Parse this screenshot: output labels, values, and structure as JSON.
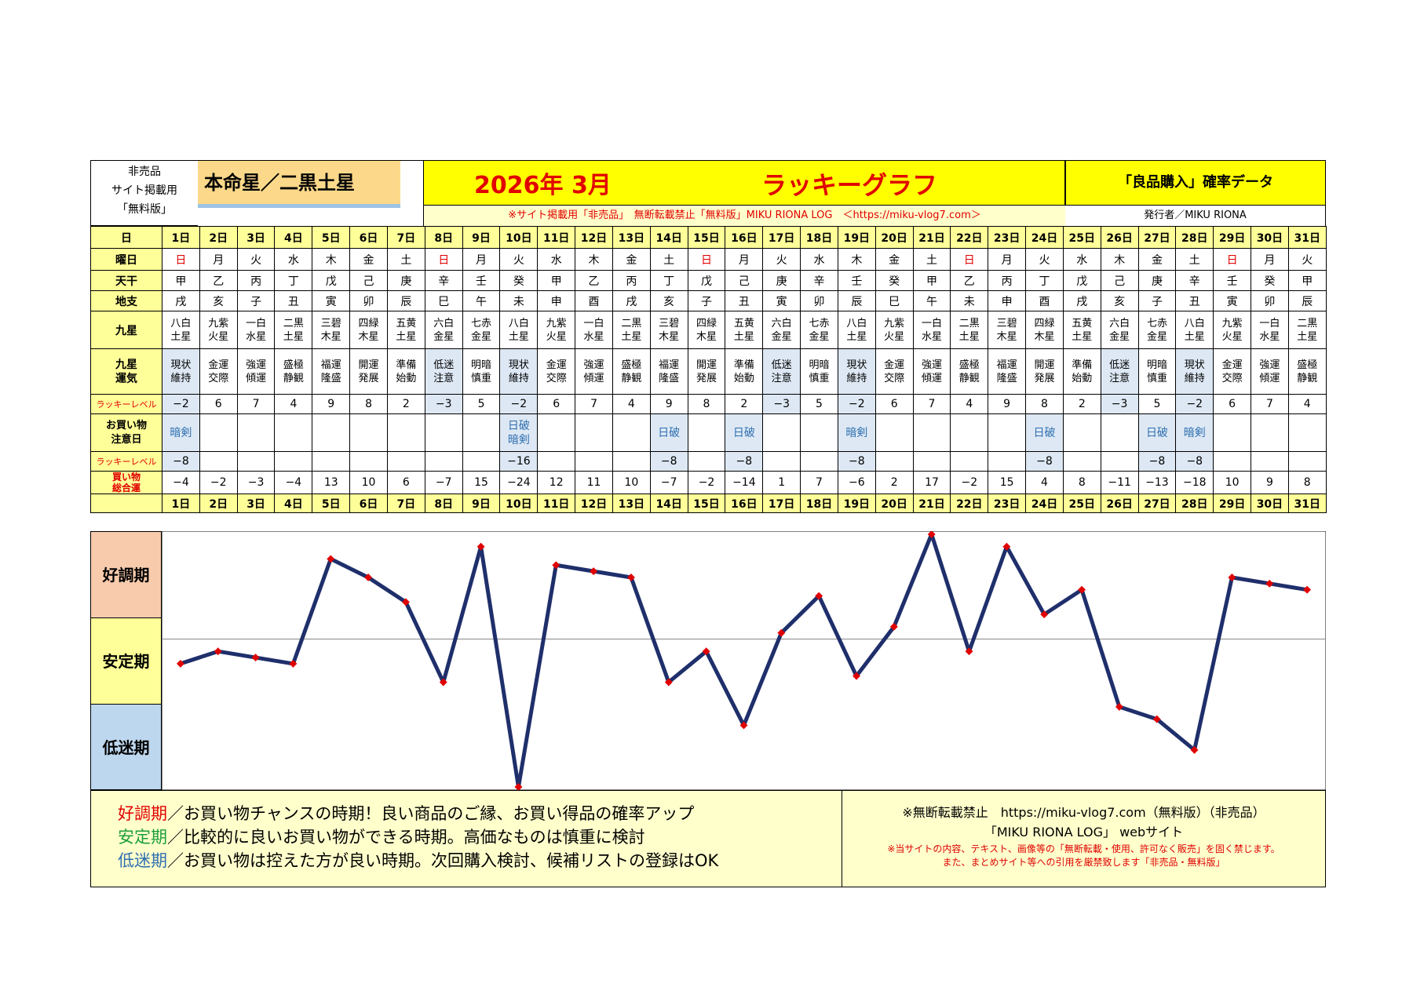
{
  "header": {
    "left_line1": "非売品",
    "left_line2": "サイト掲載用",
    "left_line3": "「無料版」",
    "star": "本命星／二黒土星",
    "title_date": "2026年 3月",
    "title_main": "ラッキーグラフ",
    "right_title": "「良品購入」確率データ",
    "notice": "※サイト掲載用「非売品」　無断転載禁止「無料版」MIKU RIONA LOG　＜https://miku-vlog7.com＞",
    "publisher": "発行者／MIKU RIONA"
  },
  "row_labels": {
    "day": "日",
    "weekday": "曜日",
    "tenkan": "天干",
    "chishi": "地支",
    "kyusei": "九星",
    "kyusei_unki_1": "九星",
    "kyusei_unki_2": "運気",
    "lucky_level": "ラッキーレベル",
    "caution_1": "お買い物",
    "caution_2": "注意日",
    "lucky_level2": "ラッキーレベル",
    "total_1": "買い物",
    "total_2": "総合運"
  },
  "days": [
    "1日",
    "2日",
    "3日",
    "4日",
    "5日",
    "6日",
    "7日",
    "8日",
    "9日",
    "10日",
    "11日",
    "12日",
    "13日",
    "14日",
    "15日",
    "16日",
    "17日",
    "18日",
    "19日",
    "20日",
    "21日",
    "22日",
    "23日",
    "24日",
    "25日",
    "26日",
    "27日",
    "28日",
    "29日",
    "30日",
    "31日"
  ],
  "weekdays": [
    "日",
    "月",
    "火",
    "水",
    "木",
    "金",
    "土",
    "日",
    "月",
    "火",
    "水",
    "木",
    "金",
    "土",
    "日",
    "月",
    "火",
    "水",
    "木",
    "金",
    "土",
    "日",
    "月",
    "火",
    "水",
    "木",
    "金",
    "土",
    "日",
    "月",
    "火"
  ],
  "tenkan": [
    "甲",
    "乙",
    "丙",
    "丁",
    "戊",
    "己",
    "庚",
    "辛",
    "壬",
    "癸",
    "甲",
    "乙",
    "丙",
    "丁",
    "戊",
    "己",
    "庚",
    "辛",
    "壬",
    "癸",
    "甲",
    "乙",
    "丙",
    "丁",
    "戊",
    "己",
    "庚",
    "辛",
    "壬",
    "癸",
    "甲"
  ],
  "chishi": [
    "戌",
    "亥",
    "子",
    "丑",
    "寅",
    "卯",
    "辰",
    "巳",
    "午",
    "未",
    "申",
    "酉",
    "戌",
    "亥",
    "子",
    "丑",
    "寅",
    "卯",
    "辰",
    "巳",
    "午",
    "未",
    "申",
    "酉",
    "戌",
    "亥",
    "子",
    "丑",
    "寅",
    "卯",
    "辰"
  ],
  "kyusei_top": [
    "八白",
    "九紫",
    "一白",
    "二黒",
    "三碧",
    "四緑",
    "五黄",
    "六白",
    "七赤",
    "八白",
    "九紫",
    "一白",
    "二黒",
    "三碧",
    "四緑",
    "五黄",
    "六白",
    "七赤",
    "八白",
    "九紫",
    "一白",
    "二黒",
    "三碧",
    "四緑",
    "五黄",
    "六白",
    "七赤",
    "八白",
    "九紫",
    "一白",
    "二黒"
  ],
  "kyusei_bottom": [
    "土星",
    "火星",
    "水星",
    "土星",
    "木星",
    "木星",
    "土星",
    "金星",
    "金星",
    "土星",
    "火星",
    "水星",
    "土星",
    "木星",
    "木星",
    "土星",
    "金星",
    "金星",
    "土星",
    "火星",
    "水星",
    "土星",
    "木星",
    "木星",
    "土星",
    "金星",
    "金星",
    "土星",
    "火星",
    "水星",
    "土星"
  ],
  "unki_top": [
    "現状",
    "金運",
    "強運",
    "盛極",
    "福運",
    "開運",
    "準備",
    "低迷",
    "明暗",
    "現状",
    "金運",
    "強運",
    "盛極",
    "福運",
    "開運",
    "準備",
    "低迷",
    "明暗",
    "現状",
    "金運",
    "強運",
    "盛極",
    "福運",
    "開運",
    "準備",
    "低迷",
    "明暗",
    "現状",
    "金運",
    "強運",
    "盛極"
  ],
  "unki_bottom": [
    "維持",
    "交際",
    "傾運",
    "静観",
    "隆盛",
    "発展",
    "始動",
    "注意",
    "慎重",
    "維持",
    "交際",
    "傾運",
    "静観",
    "隆盛",
    "発展",
    "始動",
    "注意",
    "慎重",
    "維持",
    "交際",
    "傾運",
    "静観",
    "隆盛",
    "発展",
    "始動",
    "注意",
    "慎重",
    "維持",
    "交際",
    "傾運",
    "静観"
  ],
  "unki_blue": [
    true,
    false,
    false,
    false,
    false,
    false,
    false,
    true,
    false,
    true,
    false,
    false,
    false,
    false,
    false,
    false,
    true,
    false,
    true,
    false,
    false,
    false,
    false,
    false,
    false,
    true,
    false,
    true,
    false,
    false,
    false
  ],
  "lucky_level": [
    "−2",
    "6",
    "7",
    "4",
    "9",
    "8",
    "2",
    "−3",
    "5",
    "−2",
    "6",
    "7",
    "4",
    "9",
    "8",
    "2",
    "−3",
    "5",
    "−2",
    "6",
    "7",
    "4",
    "9",
    "8",
    "2",
    "−3",
    "5",
    "−2",
    "6",
    "7",
    "4"
  ],
  "caution_top": [
    "暗剣",
    "",
    "",
    "",
    "",
    "",
    "",
    "",
    "",
    "日破",
    "",
    "",
    "",
    "日破",
    "",
    "日破",
    "",
    "",
    "暗剣",
    "",
    "",
    "",
    "",
    "日破",
    "",
    "",
    "日破",
    "暗剣",
    "",
    "",
    ""
  ],
  "caution_bottom": [
    "",
    "",
    "",
    "",
    "",
    "",
    "",
    "",
    "",
    "暗剣",
    "",
    "",
    "",
    "",
    "",
    "",
    "",
    "",
    "",
    "",
    "",
    "",
    "",
    "",
    "",
    "",
    "",
    "",
    "",
    "",
    ""
  ],
  "lucky_level2": [
    "−8",
    "",
    "",
    "",
    "",
    "",
    "",
    "",
    "",
    "−16",
    "",
    "",
    "",
    "−8",
    "",
    "−8",
    "",
    "",
    "−8",
    "",
    "",
    "",
    "",
    "−8",
    "",
    "",
    "−8",
    "−8",
    "",
    "",
    ""
  ],
  "total": [
    "−4",
    "−2",
    "−3",
    "−4",
    "13",
    "10",
    "6",
    "−7",
    "15",
    "−24",
    "12",
    "11",
    "10",
    "−7",
    "−2",
    "−14",
    "1",
    "7",
    "−6",
    "2",
    "17",
    "−2",
    "15",
    "4",
    "8",
    "−11",
    "−13",
    "−18",
    "10",
    "9",
    "8"
  ],
  "zones": {
    "good": "好調期",
    "stable": "安定期",
    "low": "低迷期"
  },
  "colors": {
    "yellow": "#ffff99",
    "title_yellow": "#ffff00",
    "star_bg": "#fcd98a",
    "good_bg": "#f8cbad",
    "stable_bg": "#ffff99",
    "low_bg": "#bdd7ee",
    "line": "#1f2f6b",
    "marker": "#e00000"
  },
  "chart_data": {
    "type": "line",
    "categories": [
      "1日",
      "2日",
      "3日",
      "4日",
      "5日",
      "6日",
      "7日",
      "8日",
      "9日",
      "10日",
      "11日",
      "12日",
      "13日",
      "14日",
      "15日",
      "16日",
      "17日",
      "18日",
      "19日",
      "20日",
      "21日",
      "22日",
      "23日",
      "24日",
      "25日",
      "26日",
      "27日",
      "28日",
      "29日",
      "30日",
      "31日"
    ],
    "series": [
      {
        "values": [
          -4,
          -2,
          -3,
          -4,
          13,
          10,
          6,
          -7,
          15,
          -24,
          12,
          11,
          10,
          -7,
          -2,
          -14,
          1,
          7,
          -6,
          2,
          17,
          -2,
          15,
          4,
          8,
          -11,
          -13,
          -18,
          10,
          9,
          8
        ]
      }
    ],
    "title": "",
    "xlabel": "",
    "ylabel": "",
    "ylim": [
      -24,
      17
    ],
    "baseline": 0
  },
  "legend": {
    "good_word": "好調期",
    "good_text": "／お買い物チャンスの時期！良い商品のご縁、お買い得品の確率アップ",
    "stable_word": "安定期",
    "stable_text": "／比較的に良いお買い物ができる時期。高価なものは慎重に検討",
    "low_word": "低迷期",
    "low_text": "／お買い物は控えた方が良い時期。次回購入検討、候補リストの登録はOK",
    "right_line1": "※無断転載禁止　https://miku-vlog7.com（無料版）（非売品）",
    "right_line2": "「MIKU RIONA LOG」 webサイト",
    "right_line3": "※当サイトの内容、テキスト、画像等の「無断転載・使用、許可なく販売」を固く禁じます。",
    "right_line4": "また、まとめサイト等への引用を厳禁致します「非売品・無料版」"
  }
}
